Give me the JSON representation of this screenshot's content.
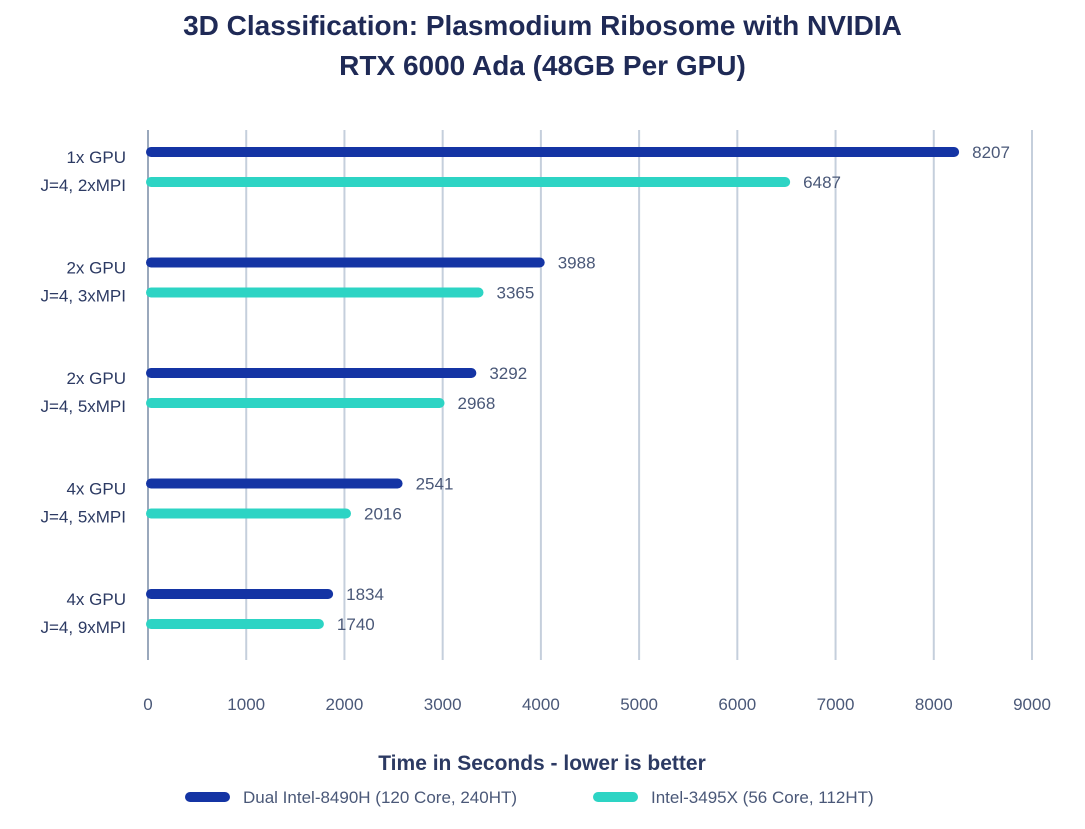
{
  "chart_data": {
    "type": "bar",
    "orientation": "horizontal",
    "title_lines": [
      "3D Classification: Plasmodium Ribosome with NVIDIA",
      "RTX 6000 Ada (48GB Per GPU)"
    ],
    "xlabel": "Time in Seconds - lower is better",
    "ylabel": "",
    "xlim": [
      0,
      9000
    ],
    "xticks": [
      0,
      1000,
      2000,
      3000,
      4000,
      5000,
      6000,
      7000,
      8000,
      9000
    ],
    "grid": true,
    "legend_position": "bottom",
    "categories": [
      [
        "1x GPU",
        "J=4, 2xMPI"
      ],
      [
        "2x GPU",
        "J=4, 3xMPI"
      ],
      [
        "2x GPU",
        "J=4, 5xMPI"
      ],
      [
        "4x GPU",
        "J=4, 5xMPI"
      ],
      [
        "4x GPU",
        "J=4, 9xMPI"
      ]
    ],
    "series": [
      {
        "name": "Dual Intel-8490H (120 Core, 240HT)",
        "color": "#1434a4",
        "values": [
          8207,
          3988,
          3292,
          2541,
          1834
        ]
      },
      {
        "name": "Intel-3495X (56 Core, 112HT)",
        "color": "#2dd4c4",
        "values": [
          6487,
          3365,
          2968,
          2016,
          1740
        ]
      }
    ]
  },
  "colors": {
    "grid": "#c5cfdc",
    "axis": "#9aa8bc"
  }
}
